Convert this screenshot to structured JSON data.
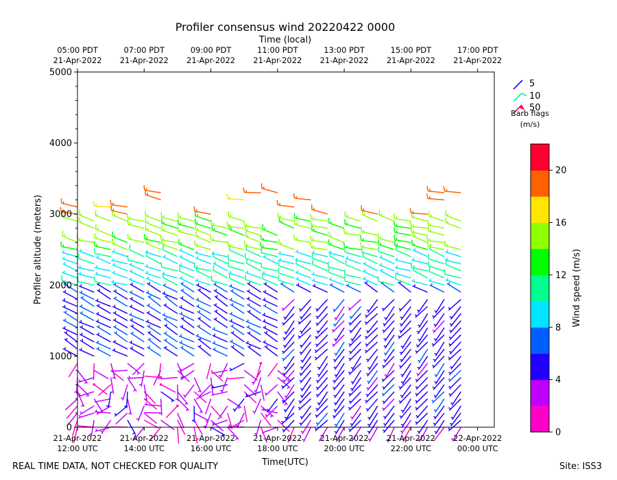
{
  "chart_data": {
    "type": "wind-barb",
    "title": "Profiler consensus wind 20220422 0000",
    "top_axis_label": "Time (local)",
    "xlabel": "Time(UTC)",
    "ylabel": "Profiler altitude (meters)",
    "ylim": [
      0,
      5000
    ],
    "yticks": [
      "0",
      "1000",
      "2000",
      "3000",
      "4000",
      "5000"
    ],
    "ytick_values": [
      0,
      1000,
      2000,
      3000,
      4000,
      5000
    ],
    "xlim_hours": [
      12.0,
      24.5
    ],
    "bottom_ticks": [
      {
        "hour": 12,
        "line1": "21-Apr-2022",
        "line2": "12:00 UTC"
      },
      {
        "hour": 14,
        "line1": "21-Apr-2022",
        "line2": "14:00 UTC"
      },
      {
        "hour": 16,
        "line1": "21-Apr-2022",
        "line2": "16:00 UTC"
      },
      {
        "hour": 18,
        "line1": "21-Apr-2022",
        "line2": "18:00 UTC"
      },
      {
        "hour": 20,
        "line1": "21-Apr-2022",
        "line2": "20:00 UTC"
      },
      {
        "hour": 22,
        "line1": "21-Apr-2022",
        "line2": "22:00 UTC"
      },
      {
        "hour": 24,
        "line1": "22-Apr-2022",
        "line2": "00:00 UTC"
      }
    ],
    "top_ticks": [
      {
        "hour": 12,
        "line1": "05:00 PDT",
        "line2": "21-Apr-2022"
      },
      {
        "hour": 14,
        "line1": "07:00 PDT",
        "line2": "21-Apr-2022"
      },
      {
        "hour": 16,
        "line1": "09:00 PDT",
        "line2": "21-Apr-2022"
      },
      {
        "hour": 18,
        "line1": "11:00 PDT",
        "line2": "21-Apr-2022"
      },
      {
        "hour": 20,
        "line1": "13:00 PDT",
        "line2": "21-Apr-2022"
      },
      {
        "hour": 22,
        "line1": "15:00 PDT",
        "line2": "21-Apr-2022"
      },
      {
        "hour": 24,
        "line1": "17:00 PDT",
        "line2": "21-Apr-2022"
      }
    ],
    "barb_legend": {
      "items": [
        {
          "label": "5",
          "color": "#2200ff"
        },
        {
          "label": "10",
          "color": "#00f5a0"
        },
        {
          "label": "50",
          "color": "#ff1050"
        }
      ],
      "title_line1": "Barb flags",
      "title_line2": "(m/s)"
    },
    "colorbar": {
      "label": "Wind speed (m/s)",
      "range": [
        0,
        22
      ],
      "tick_values": [
        0,
        4,
        8,
        12,
        16,
        20
      ],
      "tick_labels": [
        "0",
        "4",
        "8",
        "12",
        "16",
        "20"
      ],
      "colors": [
        "#ff00c8",
        "#c000ff",
        "#2200ff",
        "#0060ff",
        "#00e5ff",
        "#00ff90",
        "#00ff00",
        "#90ff00",
        "#ffe600",
        "#ff6000",
        "#ff0030"
      ]
    },
    "series": {
      "times_hours": [
        12.0,
        12.5,
        13.0,
        13.5,
        14.0,
        14.5,
        15.0,
        15.5,
        16.0,
        16.5,
        17.0,
        17.5,
        18.0,
        18.5,
        19.0,
        19.5,
        20.0,
        20.5,
        21.0,
        21.5,
        22.0,
        22.5,
        23.0,
        23.5
      ],
      "altitude_step_m": 100,
      "layers": [
        {
          "alt_from": 0,
          "alt_to": 900,
          "speed_ms": 2.5,
          "dir_deg": 210,
          "note": "light and variable near surface"
        },
        {
          "alt_from": 1000,
          "alt_to": 1900,
          "speed_ms": 6.0,
          "dir_deg": 300
        },
        {
          "alt_from": 2000,
          "alt_to": 2400,
          "speed_ms": 10.0,
          "dir_deg": 290
        },
        {
          "alt_from": 2500,
          "alt_to": 2900,
          "speed_ms": 14.5,
          "dir_deg": 285
        },
        {
          "alt_from": 3000,
          "alt_to": 3300,
          "speed_ms": 18.5,
          "dir_deg": 280
        }
      ],
      "late_lower_layer": {
        "from_hour": 18.5,
        "alt_from": 100,
        "alt_to": 1800,
        "speed_ms": 5.0,
        "dir_deg": 220
      }
    }
  },
  "footer": {
    "left_note": "REAL TIME DATA, NOT CHECKED FOR QUALITY",
    "site": "Site: ISS3"
  }
}
